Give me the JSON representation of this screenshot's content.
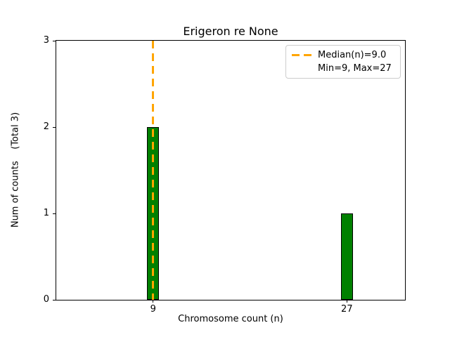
{
  "title": "Erigeron re None",
  "axes": {
    "xlabel": "Chromosome count (n)",
    "ylabel": "Num of counts    (Total 3)"
  },
  "legend": {
    "position": "upper right",
    "entries": [
      {
        "label": "Median(n)=9.0",
        "sample": "orange-dashed-line"
      },
      {
        "label": "Min=9, Max=27",
        "sample": "none"
      }
    ]
  },
  "colors": {
    "bar_fill": "#008000",
    "bar_edge": "#000000",
    "median_line": "#ffa500",
    "axis": "#000000",
    "legend_border": "#cccccc"
  },
  "chart_data": {
    "type": "bar",
    "title": "Erigeron re None",
    "xlabel": "Chromosome count (n)",
    "ylabel": "Num of counts    (Total 3)",
    "x": [
      9,
      27
    ],
    "values": [
      2,
      1
    ],
    "bar_width_data_units": 1.1,
    "xticks": [
      9,
      27
    ],
    "yticks": [
      0,
      1,
      2,
      3
    ],
    "xlim": [
      0,
      32.4
    ],
    "ylim": [
      0,
      3
    ],
    "grid": false,
    "legend_position": "upper right",
    "annotations": {
      "median_n": 9.0,
      "min_n": 9,
      "max_n": 27,
      "total_counts": 3
    }
  }
}
